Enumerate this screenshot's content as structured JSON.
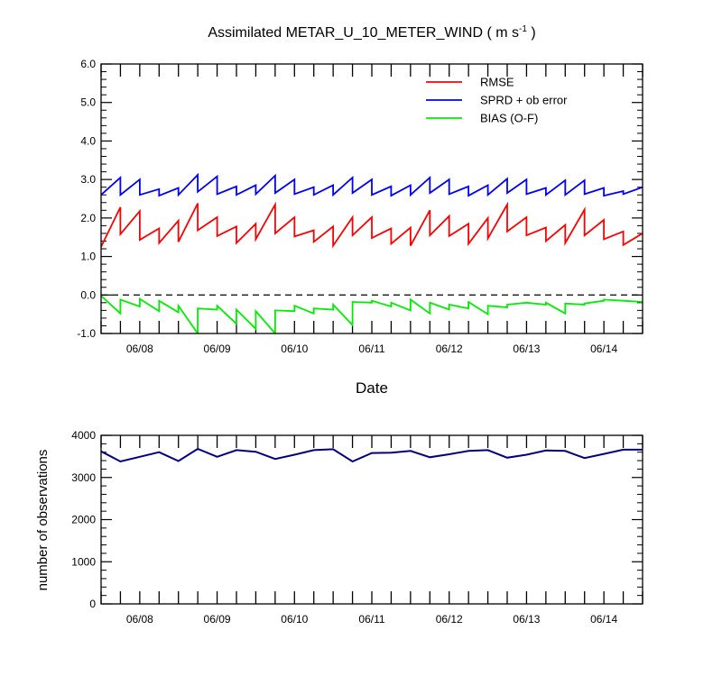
{
  "title": {
    "text": "Assimilated METAR_U_10_METER_WIND ( m s",
    "unit_superscript": "-1",
    "close": " )"
  },
  "chart_data": [
    {
      "type": "line",
      "title": "Assimilated METAR_U_10_METER_WIND ( m s-1 )",
      "xlabel": "Date",
      "ylabel": "",
      "xlim": [
        0,
        7
      ],
      "ylim": [
        -1.0,
        6.0
      ],
      "yticks": [
        -1.0,
        0.0,
        1.0,
        2.0,
        3.0,
        4.0,
        5.0,
        6.0
      ],
      "ytick_labels": [
        "-1.0",
        "0.0",
        "1.0",
        "2.0",
        "3.0",
        "4.0",
        "5.0",
        "6.0"
      ],
      "xticks": [
        0.5,
        1.5,
        2.5,
        3.5,
        4.5,
        5.5,
        6.5
      ],
      "xtick_labels": [
        "06/08",
        "06/09",
        "06/10",
        "06/11",
        "06/12",
        "06/13",
        "06/14"
      ],
      "reference_line": {
        "y": 0.0,
        "style": "dashed"
      },
      "legend_position": "top-right",
      "series": [
        {
          "name": "RMSE",
          "color": "#ff0000",
          "points": [
            [
              0,
              1.25
            ],
            [
              0.25,
              2.28
            ],
            [
              0.25,
              1.58
            ],
            [
              0.5,
              2.18
            ],
            [
              0.5,
              1.43
            ],
            [
              0.75,
              1.73
            ],
            [
              0.75,
              1.35
            ],
            [
              1,
              1.93
            ],
            [
              1,
              1.38
            ],
            [
              1.25,
              2.38
            ],
            [
              1.25,
              1.68
            ],
            [
              1.5,
              2.02
            ],
            [
              1.5,
              1.53
            ],
            [
              1.75,
              1.78
            ],
            [
              1.75,
              1.35
            ],
            [
              2,
              1.85
            ],
            [
              2,
              1.45
            ],
            [
              2.25,
              2.35
            ],
            [
              2.25,
              1.6
            ],
            [
              2.5,
              2.02
            ],
            [
              2.5,
              1.52
            ],
            [
              2.75,
              1.68
            ],
            [
              2.75,
              1.38
            ],
            [
              3,
              1.78
            ],
            [
              3,
              1.28
            ],
            [
              3.25,
              2.02
            ],
            [
              3.25,
              1.55
            ],
            [
              3.5,
              2.02
            ],
            [
              3.5,
              1.48
            ],
            [
              3.75,
              1.73
            ],
            [
              3.75,
              1.33
            ],
            [
              4,
              1.75
            ],
            [
              4,
              1.28
            ],
            [
              4.25,
              2.2
            ],
            [
              4.25,
              1.55
            ],
            [
              4.5,
              2.05
            ],
            [
              4.5,
              1.53
            ],
            [
              4.75,
              1.85
            ],
            [
              4.75,
              1.33
            ],
            [
              5,
              2.0
            ],
            [
              5,
              1.47
            ],
            [
              5.25,
              2.35
            ],
            [
              5.25,
              1.65
            ],
            [
              5.5,
              2.02
            ],
            [
              5.5,
              1.55
            ],
            [
              5.75,
              1.75
            ],
            [
              5.75,
              1.4
            ],
            [
              6,
              1.82
            ],
            [
              6,
              1.35
            ],
            [
              6.25,
              2.22
            ],
            [
              6.25,
              1.55
            ],
            [
              6.5,
              1.95
            ],
            [
              6.5,
              1.45
            ],
            [
              6.75,
              1.65
            ],
            [
              6.75,
              1.3
            ],
            [
              7,
              1.6
            ]
          ]
        },
        {
          "name": "SPRD + ob error",
          "color": "#0000ff",
          "points": [
            [
              0,
              2.6
            ],
            [
              0.25,
              3.05
            ],
            [
              0.25,
              2.6
            ],
            [
              0.5,
              3.0
            ],
            [
              0.5,
              2.6
            ],
            [
              0.75,
              2.75
            ],
            [
              0.75,
              2.58
            ],
            [
              1,
              2.78
            ],
            [
              1,
              2.6
            ],
            [
              1.25,
              3.12
            ],
            [
              1.25,
              2.68
            ],
            [
              1.5,
              3.08
            ],
            [
              1.5,
              2.62
            ],
            [
              1.75,
              2.82
            ],
            [
              1.75,
              2.6
            ],
            [
              2,
              2.85
            ],
            [
              2,
              2.62
            ],
            [
              2.25,
              3.1
            ],
            [
              2.25,
              2.65
            ],
            [
              2.5,
              3.0
            ],
            [
              2.5,
              2.62
            ],
            [
              2.75,
              2.8
            ],
            [
              2.75,
              2.6
            ],
            [
              3,
              2.85
            ],
            [
              3,
              2.6
            ],
            [
              3.25,
              3.05
            ],
            [
              3.25,
              2.65
            ],
            [
              3.5,
              3.0
            ],
            [
              3.5,
              2.6
            ],
            [
              3.75,
              2.82
            ],
            [
              3.75,
              2.58
            ],
            [
              4,
              2.85
            ],
            [
              4,
              2.6
            ],
            [
              4.25,
              3.05
            ],
            [
              4.25,
              2.65
            ],
            [
              4.5,
              3.0
            ],
            [
              4.5,
              2.62
            ],
            [
              4.75,
              2.82
            ],
            [
              4.75,
              2.58
            ],
            [
              5,
              2.85
            ],
            [
              5,
              2.6
            ],
            [
              5.25,
              3.02
            ],
            [
              5.25,
              2.65
            ],
            [
              5.5,
              3.0
            ],
            [
              5.5,
              2.62
            ],
            [
              5.75,
              2.78
            ],
            [
              5.75,
              2.6
            ],
            [
              6,
              2.98
            ],
            [
              6,
              2.6
            ],
            [
              6.25,
              2.98
            ],
            [
              6.25,
              2.62
            ],
            [
              6.5,
              2.78
            ],
            [
              6.5,
              2.58
            ],
            [
              6.75,
              2.7
            ],
            [
              6.75,
              2.62
            ],
            [
              7,
              2.8
            ]
          ]
        },
        {
          "name": "BIAS (O-F)",
          "color": "#00ee00",
          "points": [
            [
              0,
              -0.02
            ],
            [
              0.25,
              -0.48
            ],
            [
              0.25,
              -0.12
            ],
            [
              0.5,
              -0.3
            ],
            [
              0.5,
              -0.1
            ],
            [
              0.75,
              -0.42
            ],
            [
              0.75,
              -0.15
            ],
            [
              1,
              -0.45
            ],
            [
              1,
              -0.28
            ],
            [
              1.25,
              -1.0
            ],
            [
              1.25,
              -0.35
            ],
            [
              1.5,
              -0.38
            ],
            [
              1.5,
              -0.28
            ],
            [
              1.75,
              -0.75
            ],
            [
              1.75,
              -0.38
            ],
            [
              2,
              -0.88
            ],
            [
              2,
              -0.42
            ],
            [
              2.25,
              -1.0
            ],
            [
              2.25,
              -0.4
            ],
            [
              2.5,
              -0.42
            ],
            [
              2.5,
              -0.28
            ],
            [
              2.75,
              -0.48
            ],
            [
              2.75,
              -0.35
            ],
            [
              3,
              -0.38
            ],
            [
              3,
              -0.25
            ],
            [
              3.25,
              -0.78
            ],
            [
              3.25,
              -0.18
            ],
            [
              3.5,
              -0.2
            ],
            [
              3.5,
              -0.15
            ],
            [
              3.75,
              -0.3
            ],
            [
              3.75,
              -0.2
            ],
            [
              4,
              -0.4
            ],
            [
              4,
              -0.12
            ],
            [
              4.25,
              -0.48
            ],
            [
              4.25,
              -0.2
            ],
            [
              4.5,
              -0.38
            ],
            [
              4.5,
              -0.25
            ],
            [
              4.75,
              -0.35
            ],
            [
              4.75,
              -0.18
            ],
            [
              5,
              -0.5
            ],
            [
              5,
              -0.28
            ],
            [
              5.25,
              -0.32
            ],
            [
              5.25,
              -0.25
            ],
            [
              5.5,
              -0.2
            ],
            [
              5.5,
              -0.2
            ],
            [
              5.75,
              -0.25
            ],
            [
              5.75,
              -0.2
            ],
            [
              6,
              -0.48
            ],
            [
              6,
              -0.22
            ],
            [
              6.25,
              -0.25
            ],
            [
              6.25,
              -0.22
            ],
            [
              6.5,
              -0.15
            ],
            [
              6.5,
              -0.12
            ],
            [
              6.75,
              -0.15
            ],
            [
              7,
              -0.18
            ]
          ]
        }
      ]
    },
    {
      "type": "line",
      "title": "",
      "xlabel": "",
      "ylabel": "number of observations",
      "xlim": [
        0,
        7
      ],
      "ylim": [
        0,
        4000
      ],
      "yticks": [
        0,
        1000,
        2000,
        3000,
        4000
      ],
      "ytick_labels": [
        "0",
        "1000",
        "2000",
        "3000",
        "4000"
      ],
      "xticks": [
        0.5,
        1.5,
        2.5,
        3.5,
        4.5,
        5.5,
        6.5
      ],
      "xtick_labels": [
        "06/08",
        "06/09",
        "06/10",
        "06/11",
        "06/12",
        "06/13",
        "06/14"
      ],
      "series": [
        {
          "color": "#000080",
          "points": [
            [
              0,
              3620
            ],
            [
              0.25,
              3380
            ],
            [
              0.5,
              3490
            ],
            [
              0.75,
              3600
            ],
            [
              1,
              3390
            ],
            [
              1.25,
              3680
            ],
            [
              1.5,
              3490
            ],
            [
              1.75,
              3650
            ],
            [
              2,
              3610
            ],
            [
              2.25,
              3440
            ],
            [
              2.5,
              3540
            ],
            [
              2.75,
              3650
            ],
            [
              3,
              3670
            ],
            [
              3.25,
              3380
            ],
            [
              3.5,
              3580
            ],
            [
              3.75,
              3590
            ],
            [
              4,
              3630
            ],
            [
              4.25,
              3480
            ],
            [
              4.5,
              3550
            ],
            [
              4.75,
              3630
            ],
            [
              5,
              3650
            ],
            [
              5.25,
              3470
            ],
            [
              5.5,
              3540
            ],
            [
              5.75,
              3640
            ],
            [
              6,
              3630
            ],
            [
              6.25,
              3460
            ],
            [
              6.5,
              3560
            ],
            [
              6.75,
              3660
            ],
            [
              7,
              3660
            ]
          ]
        }
      ]
    }
  ]
}
